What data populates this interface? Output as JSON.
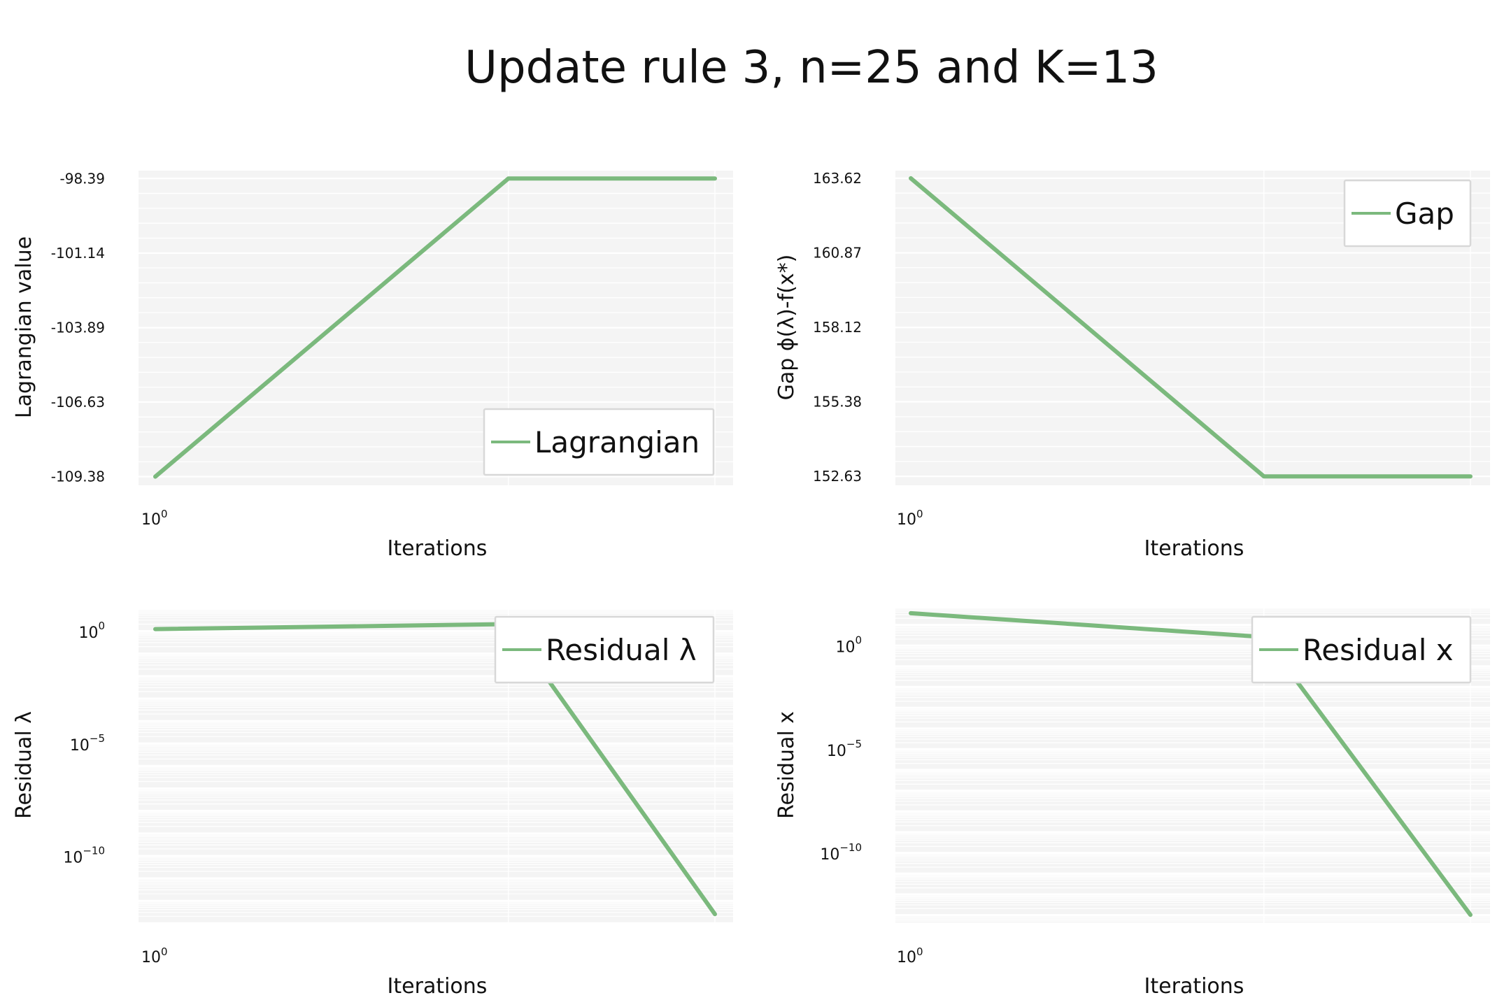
{
  "title": "Update rule 3, n=25 and K=13",
  "colors": {
    "line": "#7bb97d",
    "panel_bg": "#f4f4f4",
    "grid": "#ffffff",
    "legend_border": "#d8d8d8"
  },
  "chart_data": [
    {
      "type": "line",
      "xscale": "log",
      "yscale": "linear",
      "x": [
        1,
        2,
        3
      ],
      "series": [
        {
          "name": "Lagrangian",
          "values": [
            -109.38,
            -98.39,
            -98.39
          ]
        }
      ],
      "xlabel": "Iterations",
      "ylabel": "Lagrangian value",
      "x_ticks": [
        {
          "value": 1,
          "base": "10",
          "exp": "0"
        }
      ],
      "y_ticks": [
        {
          "value": -98.39,
          "label": "-98.39"
        },
        {
          "value": -101.14,
          "label": "-101.14"
        },
        {
          "value": -103.89,
          "label": "-103.89"
        },
        {
          "value": -106.63,
          "label": "-106.63"
        },
        {
          "value": -109.38,
          "label": "-109.38"
        }
      ],
      "ylim": [
        -109.7,
        -98.1
      ],
      "legend": "lower-right",
      "grid": true
    },
    {
      "type": "line",
      "xscale": "log",
      "yscale": "linear",
      "x": [
        1,
        2,
        3
      ],
      "series": [
        {
          "name": "Gap",
          "values": [
            163.62,
            152.63,
            152.63
          ]
        }
      ],
      "xlabel": "Iterations",
      "ylabel": "Gap ϕ(λ)-f(x*)",
      "x_ticks": [
        {
          "value": 1,
          "base": "10",
          "exp": "0"
        }
      ],
      "y_ticks": [
        {
          "value": 163.62,
          "label": "163.62"
        },
        {
          "value": 160.87,
          "label": "160.87"
        },
        {
          "value": 158.12,
          "label": "158.12"
        },
        {
          "value": 155.38,
          "label": "155.38"
        },
        {
          "value": 152.63,
          "label": "152.63"
        }
      ],
      "ylim": [
        152.3,
        163.9
      ],
      "legend": "upper-right",
      "grid": true
    },
    {
      "type": "line",
      "xscale": "log",
      "yscale": "log",
      "x": [
        1,
        2,
        3
      ],
      "series": [
        {
          "name": "Residual λ",
          "values": [
            1.2,
            2.0,
            2.5e-13
          ]
        }
      ],
      "xlabel": "Iterations",
      "ylabel": "Residual λ",
      "x_ticks": [
        {
          "value": 1,
          "base": "10",
          "exp": "0"
        }
      ],
      "y_ticks": [
        {
          "value": 1,
          "base": "10",
          "exp": "0"
        },
        {
          "value": 1e-05,
          "base": "10",
          "exp": "−5"
        },
        {
          "value": 1e-10,
          "base": "10",
          "exp": "−10"
        }
      ],
      "ylim": [
        1e-13,
        10
      ],
      "legend": "upper-right",
      "grid": true
    },
    {
      "type": "line",
      "xscale": "log",
      "yscale": "log",
      "x": [
        1,
        2,
        3
      ],
      "series": [
        {
          "name": "Residual x",
          "values": [
            35,
            2.5,
            1e-13
          ]
        }
      ],
      "xlabel": "Iterations",
      "ylabel": "Residual x",
      "x_ticks": [
        {
          "value": 1,
          "base": "10",
          "exp": "0"
        }
      ],
      "y_ticks": [
        {
          "value": 1,
          "base": "10",
          "exp": "0"
        },
        {
          "value": 1e-05,
          "base": "10",
          "exp": "−5"
        },
        {
          "value": 1e-10,
          "base": "10",
          "exp": "−10"
        }
      ],
      "ylim": [
        4e-14,
        60
      ],
      "legend": "upper-right",
      "grid": true
    }
  ]
}
